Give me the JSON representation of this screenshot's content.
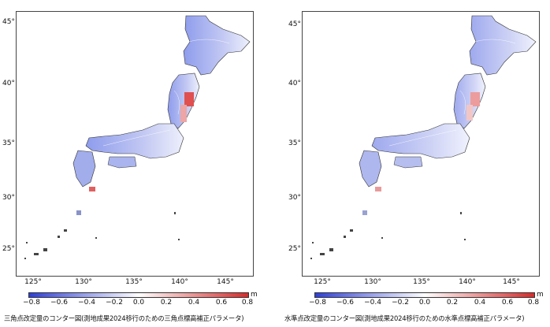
{
  "figures": [
    {
      "caption": "三角点改定量のコンター図(測地成果2024移行のための三角点標高補正パラメータ)",
      "lat_ticks": [
        "45°",
        "40°",
        "35°",
        "30°",
        "25°"
      ],
      "lon_ticks": [
        "125°",
        "130°",
        "135°",
        "140°",
        "145°"
      ],
      "colorbar_ticks": [
        "−0.8",
        "−0.6",
        "−0.4",
        "−0.2",
        "0.0",
        "0.2",
        "0.4",
        "0.6",
        "0.8"
      ],
      "colorbar_unit": "m",
      "colors": {
        "negative": "#2e3fd9",
        "zero": "#ffffff",
        "positive": "#d92a2a",
        "land_fill": "#b9c1f0",
        "red_fill": "#e05050"
      }
    },
    {
      "caption": "水準点改定量のコンター図(測地成果2024移行のための水準点標高補正パラメータ)",
      "lat_ticks": [
        "45°",
        "40°",
        "35°",
        "30°",
        "25°"
      ],
      "lon_ticks": [
        "125°",
        "130°",
        "135°",
        "140°",
        "145°"
      ],
      "colorbar_ticks": [
        "−0.8",
        "−0.6",
        "−0.4",
        "−0.2",
        "0.0",
        "0.2",
        "0.4",
        "0.6",
        "0.8"
      ],
      "colorbar_unit": "m",
      "colors": {
        "negative": "#2e3fd9",
        "zero": "#ffffff",
        "positive": "#d92a2a",
        "land_fill": "#c4cbf3",
        "red_fill": "#ec8c8c"
      }
    }
  ]
}
